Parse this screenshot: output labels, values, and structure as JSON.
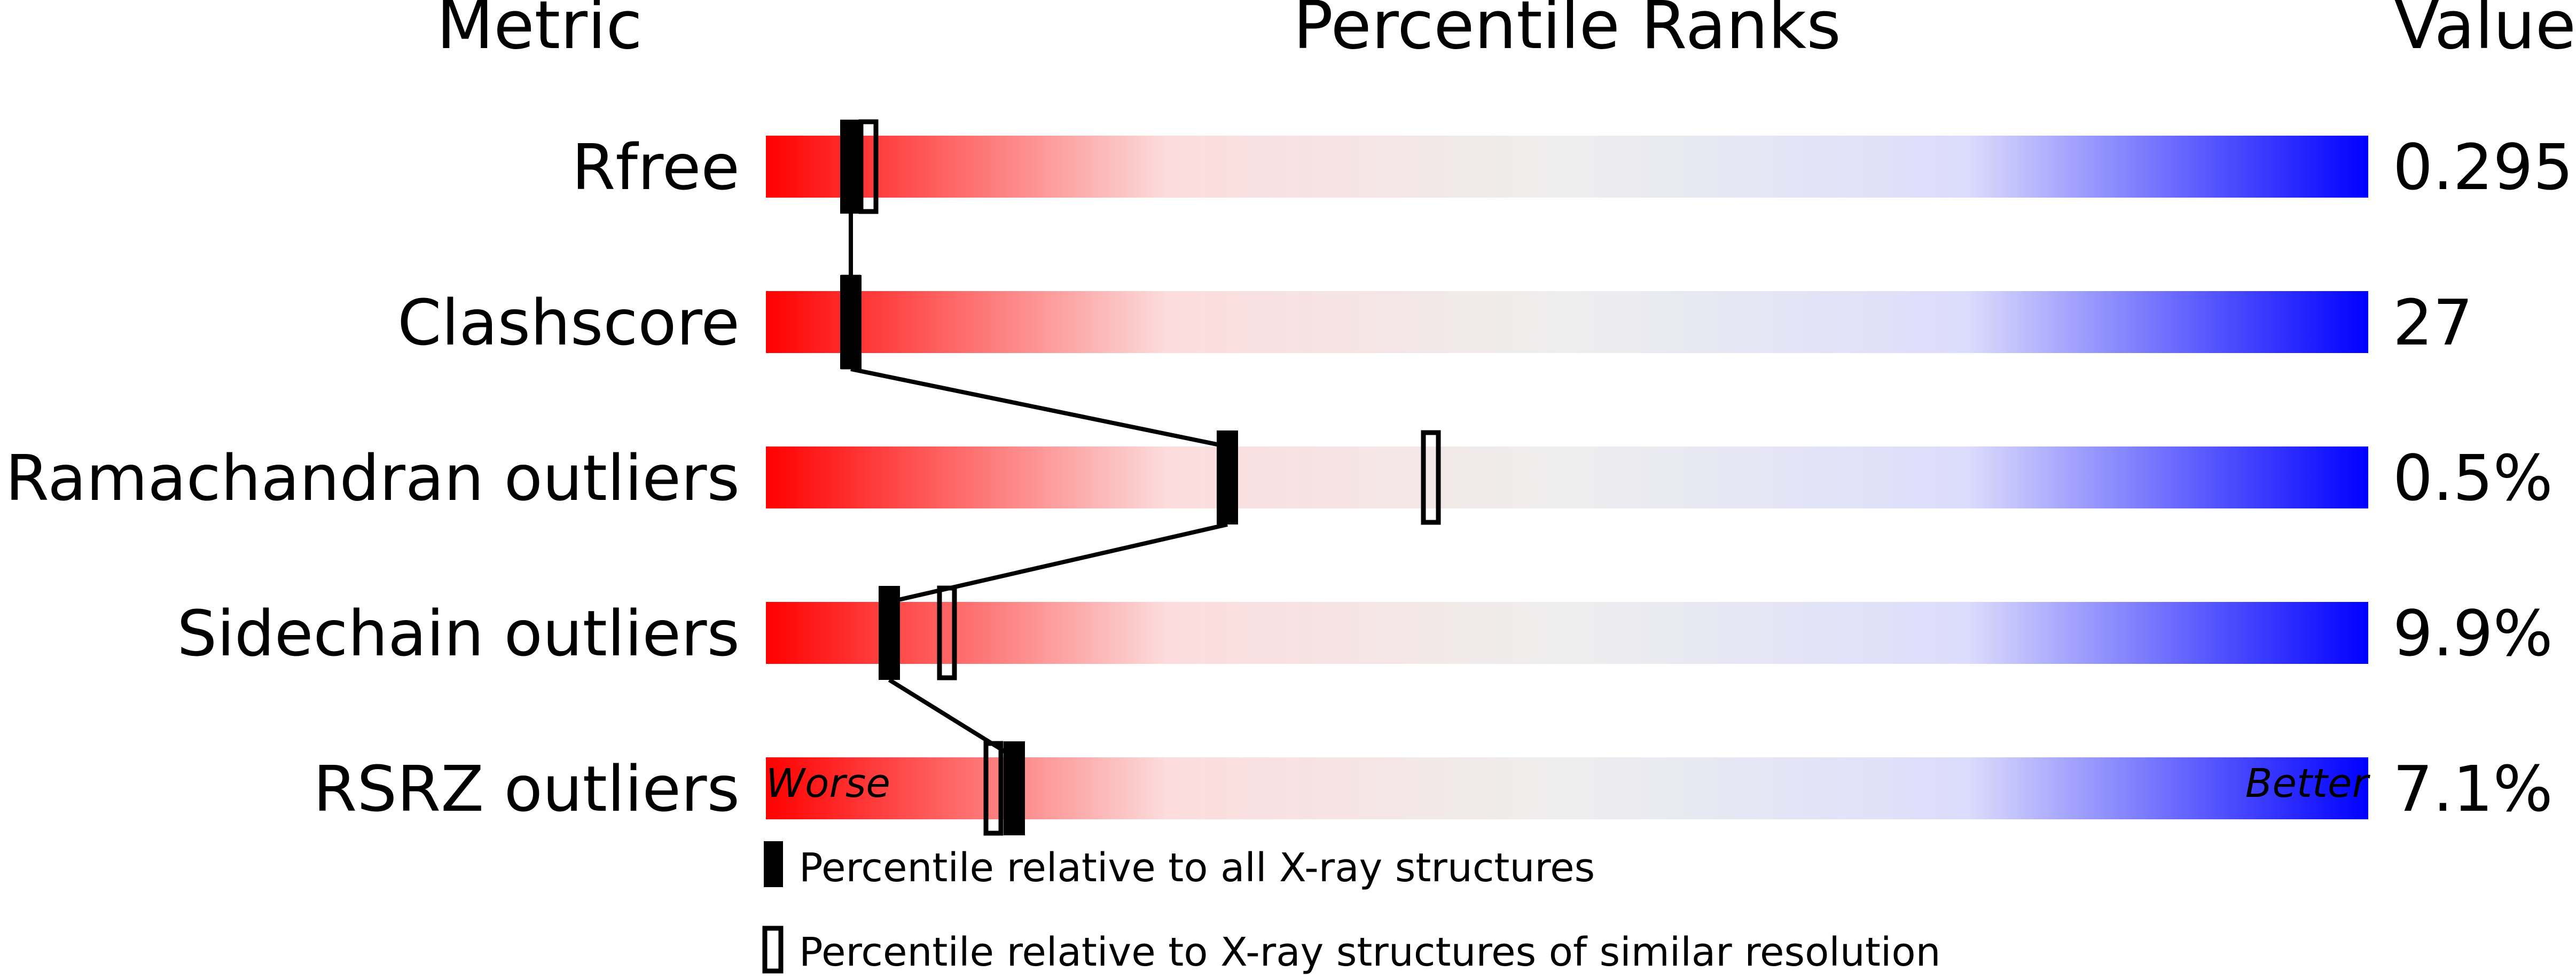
{
  "chart_data": {
    "type": "percentile-slider",
    "headers": {
      "metric": "Metric",
      "percentile": "Percentile Ranks",
      "value": "Value"
    },
    "xlim": [
      0,
      100
    ],
    "scale_labels": {
      "left": "Worse",
      "right": "Better"
    },
    "gradient_colors": [
      "#ff0000",
      "#fcdcdc",
      "#eeeeee",
      "#dcdcfc",
      "#0000ff"
    ],
    "rows": [
      {
        "metric": "Rfree",
        "value": "0.295",
        "percentile_all": 5.3,
        "percentile_similar": 6.4
      },
      {
        "metric": "Clashscore",
        "value": "27",
        "percentile_all": 5.3,
        "percentile_similar": 5.3
      },
      {
        "metric": "Ramachandran outliers",
        "value": "0.5%",
        "percentile_all": 28.8,
        "percentile_similar": 41.5
      },
      {
        "metric": "Sidechain outliers",
        "value": "9.9%",
        "percentile_all": 7.7,
        "percentile_similar": 11.3
      },
      {
        "metric": "RSRZ outliers",
        "value": "7.1%",
        "percentile_all": 15.5,
        "percentile_similar": 14.2
      }
    ],
    "legend": [
      {
        "marker": "filled",
        "label": "Percentile relative to all X-ray structures"
      },
      {
        "marker": "open",
        "label": "Percentile relative to X-ray structures of similar resolution"
      }
    ]
  }
}
